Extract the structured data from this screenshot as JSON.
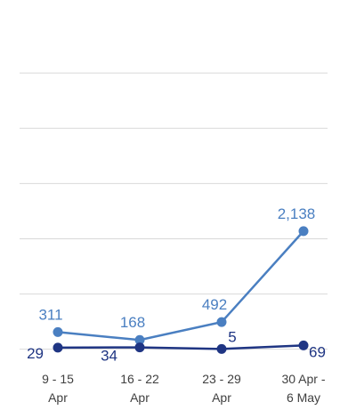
{
  "chart_data": {
    "type": "line",
    "categories": [
      [
        "9 - 15",
        "Apr"
      ],
      [
        "16 - 22",
        "Apr"
      ],
      [
        "23 - 29",
        "Apr"
      ],
      [
        "30 Apr -",
        "6 May"
      ]
    ],
    "series": [
      {
        "values": [
          311,
          168,
          492,
          2138
        ],
        "labels": [
          "311",
          "168",
          "492",
          "2,138"
        ],
        "color": "#4a7fc1"
      },
      {
        "values": [
          29,
          34,
          5,
          69
        ],
        "labels": [
          "29",
          "34",
          "5",
          "69"
        ],
        "color": "#1f3583"
      }
    ],
    "ylim": [
      -150,
      6000
    ],
    "grid": true,
    "legend": "none"
  }
}
